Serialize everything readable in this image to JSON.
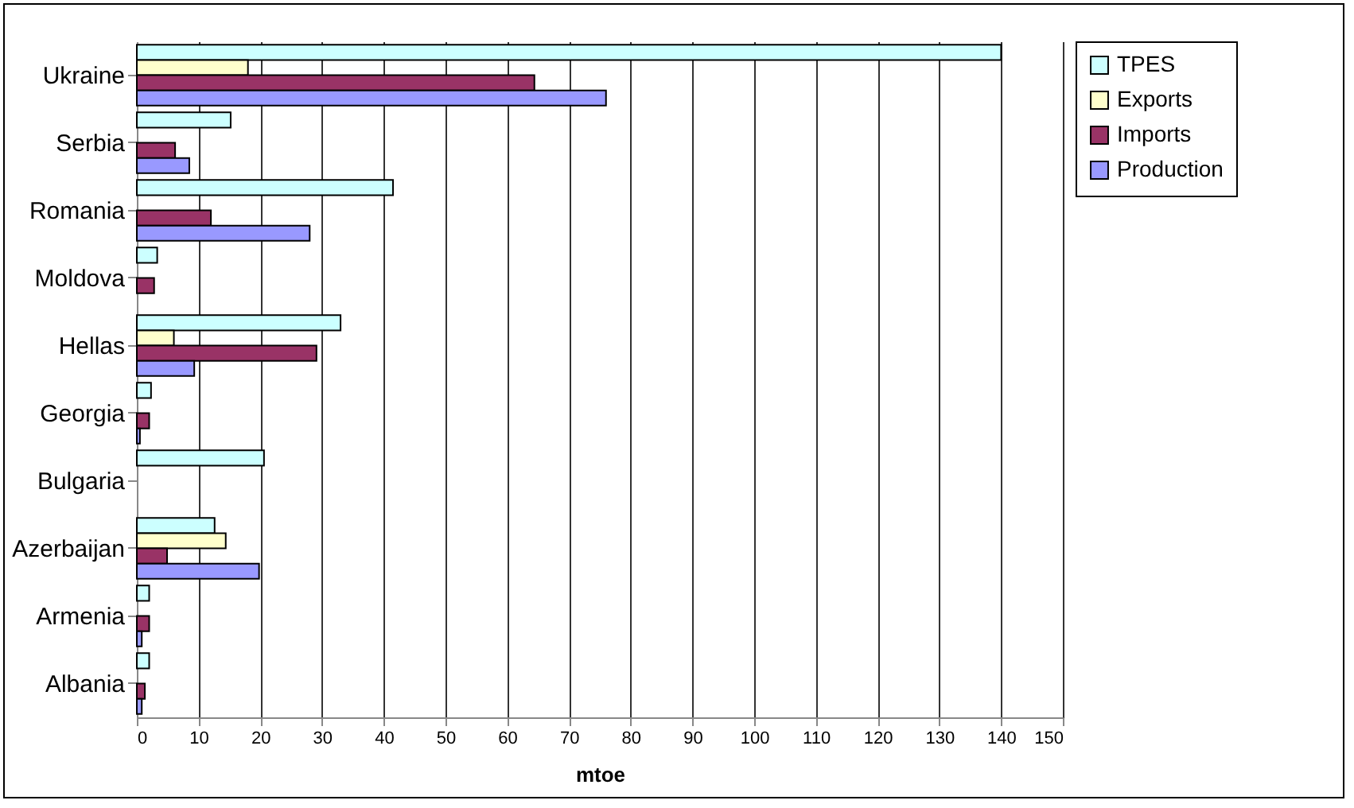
{
  "chart_data": {
    "type": "bar",
    "orientation": "horizontal",
    "xlabel": "mtoe",
    "categories": [
      "Ukraine",
      "Serbia",
      "Romania",
      "Moldova",
      "Hellas",
      "Georgia",
      "Bulgaria",
      "Azerbaijan",
      "Armenia",
      "Albania"
    ],
    "series": [
      {
        "name": "TPES",
        "color": "#ccffff",
        "values": [
          140,
          15.2,
          41.5,
          3.3,
          33,
          2.3,
          20.6,
          12.6,
          2,
          2
        ]
      },
      {
        "name": "Exports",
        "color": "#ffffcc",
        "values": [
          18,
          null,
          null,
          null,
          6,
          null,
          null,
          14.4,
          null,
          null
        ]
      },
      {
        "name": "Imports",
        "color": "#993366",
        "values": [
          64.4,
          6.2,
          12,
          2.8,
          29.1,
          2,
          null,
          4.9,
          2,
          1.3
        ]
      },
      {
        "name": "Production",
        "color": "#9999ff",
        "values": [
          76,
          8.5,
          28,
          null,
          9.3,
          0.5,
          null,
          19.8,
          0.8,
          0.8
        ]
      }
    ],
    "xlim": [
      0,
      150
    ],
    "xticks": [
      0,
      10,
      20,
      30,
      40,
      50,
      60,
      70,
      80,
      90,
      100,
      110,
      120,
      130,
      140,
      150
    ],
    "grid": "x",
    "legend": "right"
  }
}
